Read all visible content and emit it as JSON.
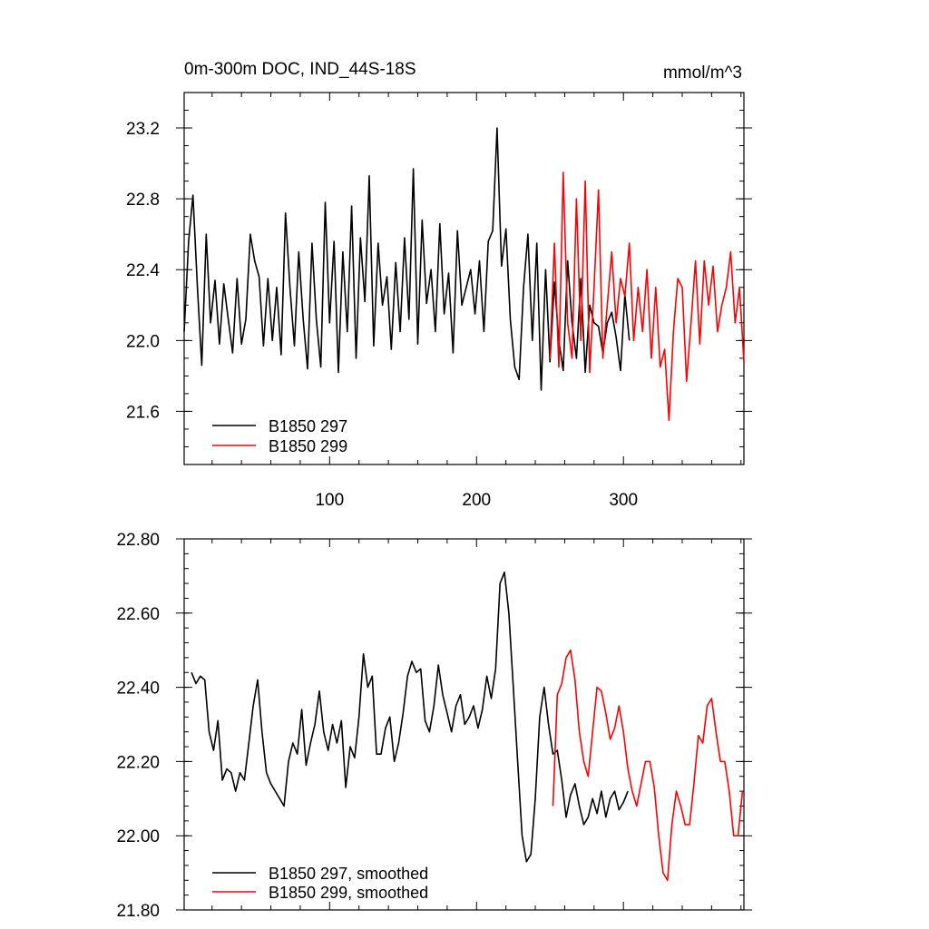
{
  "chart_data": [
    {
      "type": "line",
      "title": "0m-300m DOC, IND_44S-18S",
      "units": "mmol/m^3",
      "xlim": [
        1,
        382
      ],
      "ylim": [
        21.3,
        23.4
      ],
      "xticks": [
        100,
        200,
        300
      ],
      "yticks": [
        21.6,
        22.0,
        22.4,
        22.8,
        23.2
      ],
      "ytick_labels": [
        "21.6",
        "22.0",
        "22.4",
        "22.8",
        "23.2"
      ],
      "legend": "bottom-left",
      "grid": false,
      "series": [
        {
          "name": "B1850 297",
          "color": "#000000",
          "x": [
            1,
            4,
            7,
            10,
            13,
            16,
            19,
            22,
            25,
            28,
            31,
            34,
            37,
            40,
            43,
            46,
            49,
            52,
            55,
            58,
            61,
            64,
            67,
            70,
            73,
            76,
            79,
            82,
            85,
            88,
            91,
            94,
            97,
            100,
            103,
            106,
            109,
            112,
            115,
            118,
            121,
            124,
            127,
            130,
            133,
            136,
            139,
            142,
            145,
            148,
            151,
            154,
            157,
            160,
            163,
            166,
            169,
            172,
            175,
            178,
            181,
            184,
            187,
            190,
            193,
            196,
            199,
            202,
            205,
            208,
            211,
            214,
            217,
            220,
            223,
            226,
            229,
            232,
            235,
            238,
            241,
            244,
            247,
            250,
            253,
            256,
            259,
            262,
            265,
            268,
            271,
            274,
            277,
            280,
            283,
            286,
            289,
            292,
            295,
            298,
            301,
            304
          ],
          "y": [
            22.05,
            22.56,
            22.82,
            22.3,
            21.86,
            22.6,
            22.1,
            22.34,
            21.98,
            22.32,
            22.12,
            21.93,
            22.35,
            21.98,
            22.12,
            22.6,
            22.45,
            22.36,
            21.97,
            22.35,
            22.0,
            22.3,
            21.92,
            22.72,
            22.3,
            21.97,
            22.5,
            22.12,
            21.84,
            22.55,
            22.12,
            21.85,
            22.78,
            22.1,
            22.56,
            21.82,
            22.5,
            22.05,
            22.76,
            21.9,
            22.58,
            22.22,
            22.93,
            21.97,
            22.55,
            22.2,
            22.36,
            21.95,
            22.44,
            22.05,
            22.58,
            22.12,
            22.97,
            21.98,
            22.68,
            22.21,
            22.4,
            22.05,
            22.66,
            22.15,
            22.38,
            21.93,
            22.62,
            22.2,
            22.3,
            22.4,
            22.15,
            22.45,
            22.05,
            22.56,
            22.62,
            23.2,
            22.42,
            22.63,
            22.12,
            21.85,
            21.78,
            22.3,
            22.6,
            22.0,
            22.55,
            21.72,
            22.4,
            21.88,
            22.33,
            22.0,
            21.83,
            22.45,
            22.1,
            21.9,
            22.35,
            21.82,
            22.2,
            22.1,
            22.08,
            21.93,
            22.1,
            22.16,
            22.02,
            21.83,
            22.26,
            22.0
          ],
          "x_note": "",
          "y_note": ""
        },
        {
          "name": "B1850 299",
          "color": "#ff0000",
          "x": [
            250,
            253,
            256,
            259,
            262,
            265,
            268,
            271,
            274,
            277,
            280,
            283,
            286,
            289,
            292,
            295,
            298,
            301,
            304,
            307,
            310,
            313,
            316,
            319,
            322,
            325,
            328,
            331,
            334,
            337,
            340,
            343,
            346,
            349,
            352,
            355,
            358,
            361,
            364,
            367,
            370,
            373,
            376,
            379,
            382
          ],
          "y": [
            21.9,
            22.55,
            21.85,
            22.95,
            22.1,
            21.9,
            22.8,
            22.0,
            22.9,
            21.82,
            22.3,
            22.85,
            21.9,
            22.2,
            22.5,
            22.1,
            22.35,
            22.25,
            22.55,
            22.0,
            22.3,
            22.05,
            22.4,
            21.9,
            22.3,
            21.85,
            21.95,
            21.55,
            22.05,
            22.35,
            22.3,
            21.77,
            22.1,
            22.45,
            21.98,
            22.45,
            22.2,
            22.42,
            22.05,
            22.2,
            22.3,
            22.5,
            22.1,
            22.3,
            21.88
          ]
        }
      ]
    },
    {
      "type": "line",
      "xlim": [
        1,
        382
      ],
      "ylim": [
        21.8,
        22.8
      ],
      "xticks": [
        100,
        200,
        300
      ],
      "yticks": [
        21.8,
        22.0,
        22.2,
        22.4,
        22.6,
        22.8
      ],
      "ytick_labels": [
        "21.80",
        "22.00",
        "22.20",
        "22.40",
        "22.60",
        "22.80"
      ],
      "legend": "bottom-left",
      "grid": false,
      "series": [
        {
          "name": "B1850 297, smoothed",
          "color": "#000000",
          "x": [
            6,
            9,
            12,
            15,
            18,
            21,
            24,
            27,
            30,
            33,
            36,
            39,
            42,
            45,
            48,
            51,
            54,
            57,
            60,
            63,
            66,
            69,
            72,
            75,
            78,
            81,
            84,
            87,
            90,
            93,
            96,
            99,
            102,
            105,
            108,
            111,
            114,
            117,
            120,
            123,
            126,
            129,
            132,
            135,
            138,
            141,
            144,
            147,
            150,
            153,
            156,
            159,
            162,
            165,
            168,
            171,
            174,
            177,
            180,
            183,
            186,
            189,
            192,
            195,
            198,
            201,
            204,
            207,
            210,
            213,
            216,
            219,
            222,
            225,
            228,
            231,
            234,
            237,
            240,
            243,
            246,
            249,
            252,
            255,
            258,
            261,
            264,
            267,
            270,
            273,
            276,
            279,
            282,
            285,
            288,
            291,
            294,
            297,
            300,
            303
          ],
          "y": [
            22.44,
            22.41,
            22.43,
            22.42,
            22.28,
            22.23,
            22.31,
            22.15,
            22.18,
            22.17,
            22.12,
            22.17,
            22.15,
            22.25,
            22.35,
            22.42,
            22.28,
            22.17,
            22.14,
            22.12,
            22.1,
            22.08,
            22.2,
            22.25,
            22.22,
            22.34,
            22.19,
            22.25,
            22.3,
            22.39,
            22.28,
            22.23,
            22.3,
            22.25,
            22.31,
            22.13,
            22.24,
            22.21,
            22.32,
            22.49,
            22.4,
            22.43,
            22.22,
            22.22,
            22.29,
            22.32,
            22.2,
            22.25,
            22.33,
            22.43,
            22.47,
            22.44,
            22.45,
            22.31,
            22.28,
            22.35,
            22.46,
            22.38,
            22.33,
            22.28,
            22.35,
            22.38,
            22.3,
            22.32,
            22.35,
            22.29,
            22.34,
            22.43,
            22.37,
            22.45,
            22.68,
            22.71,
            22.6,
            22.4,
            22.2,
            22.0,
            21.93,
            21.95,
            22.1,
            22.32,
            22.4,
            22.3,
            22.22,
            22.23,
            22.15,
            22.05,
            22.11,
            22.14,
            22.08,
            22.03,
            22.05,
            22.1,
            22.06,
            22.12,
            22.05,
            22.1,
            22.12,
            22.07,
            22.09,
            22.12
          ],
          "x_note": "",
          "y_note": ""
        },
        {
          "name": "B1850 299, smoothed",
          "color": "#ff0000",
          "x": [
            252,
            255,
            258,
            261,
            264,
            267,
            270,
            273,
            276,
            279,
            282,
            285,
            288,
            291,
            294,
            297,
            300,
            303,
            306,
            309,
            312,
            315,
            318,
            321,
            324,
            327,
            330,
            333,
            336,
            339,
            342,
            345,
            348,
            351,
            354,
            357,
            360,
            363,
            366,
            369,
            372,
            375,
            378,
            381
          ],
          "y": [
            22.08,
            22.38,
            22.41,
            22.48,
            22.5,
            22.42,
            22.28,
            22.2,
            22.16,
            22.28,
            22.4,
            22.39,
            22.33,
            22.26,
            22.29,
            22.35,
            22.28,
            22.18,
            22.12,
            22.08,
            22.14,
            22.2,
            22.2,
            22.13,
            22.0,
            21.9,
            21.88,
            22.03,
            22.12,
            22.08,
            22.03,
            22.03,
            22.14,
            22.27,
            22.25,
            22.35,
            22.37,
            22.28,
            22.2,
            22.2,
            22.12,
            22.0,
            22.0,
            22.12
          ]
        }
      ]
    }
  ]
}
